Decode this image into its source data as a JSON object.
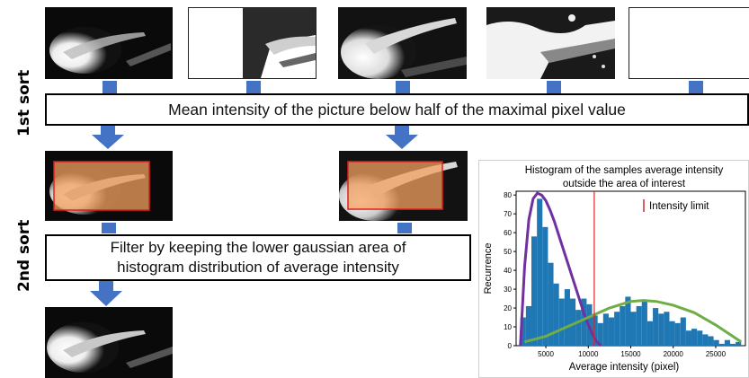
{
  "labels": {
    "first_sort": "1st sort",
    "second_sort": "2nd sort"
  },
  "boxes": {
    "first": "Mean intensity of the picture below half of the maximal pixel value",
    "second_line1": "Filter by keeping the lower gaussian area of",
    "second_line2": "histogram distribution of average intensity"
  },
  "colors": {
    "arrow": "#4472c4",
    "overlay": "#f4a060",
    "overlay_border": "#e0201c",
    "bars": "#1f77b4",
    "low_curve": "#7030a0",
    "high_curve": "#70ad47",
    "limit_line": "#d62728"
  },
  "chart_data": {
    "type": "bar",
    "title_line1": "Histogram of the samples average intensity",
    "title_line2": "outside the area of interest",
    "xlabel": "Average intensity (pixel)",
    "ylabel": "Recurrence",
    "xlim": [
      1500,
      28500
    ],
    "ylim": [
      0,
      82
    ],
    "xticks": [
      5000,
      10000,
      15000,
      20000,
      25000
    ],
    "yticks": [
      0,
      10,
      20,
      30,
      40,
      50,
      60,
      70,
      80
    ],
    "bin_start": 2000,
    "bin_width": 650,
    "values": [
      15,
      21,
      58,
      78,
      63,
      44,
      33,
      25,
      30,
      25,
      19,
      25,
      22,
      16,
      12,
      17,
      15,
      18,
      21,
      26,
      18,
      21,
      24,
      13,
      20,
      17,
      18,
      13,
      12,
      15,
      8,
      9,
      8,
      6,
      5,
      3,
      1,
      3,
      1,
      2
    ],
    "limit": 10700,
    "legend": "Intensity limit",
    "legend_position": "top-right",
    "curves": [
      {
        "name": "lower gaussian",
        "x": [
          2000,
          2500,
          3000,
          3500,
          4000,
          4500,
          5000,
          5500,
          6000,
          6500,
          7000,
          7500,
          8000,
          8500,
          9000,
          9500,
          10000,
          10500,
          11000,
          11500
        ],
        "y": [
          0,
          42,
          67,
          78,
          81,
          80,
          77,
          72,
          66,
          59,
          52,
          45,
          38,
          31,
          24,
          17,
          11,
          6,
          2,
          0
        ]
      },
      {
        "name": "upper gaussian",
        "x": [
          2500,
          5000,
          7500,
          10000,
          12500,
          15000,
          16500,
          18000,
          20000,
          22500,
          25000,
          27000,
          28000
        ],
        "y": [
          2,
          5,
          10,
          15,
          20,
          23.5,
          24,
          23.5,
          21.5,
          17.5,
          11,
          5,
          2
        ]
      }
    ]
  }
}
